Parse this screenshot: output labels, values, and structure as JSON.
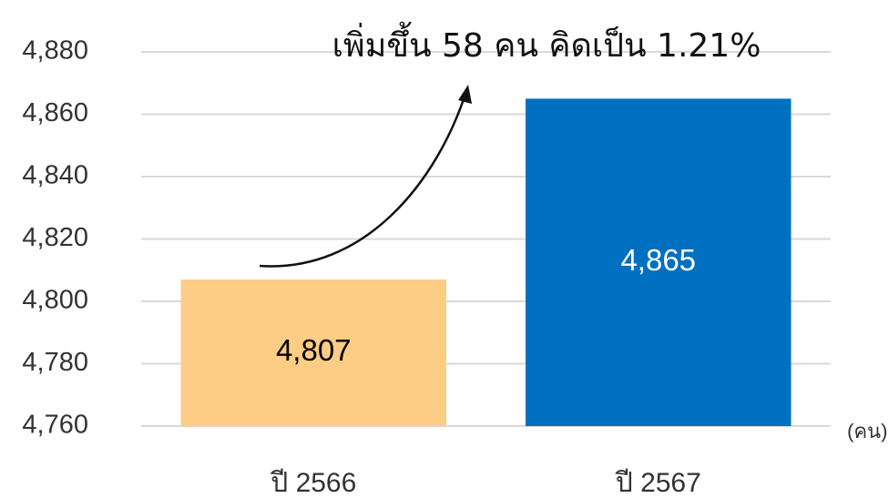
{
  "chart_data": {
    "type": "bar",
    "annotation": "เพิ่มขึ้น 58 คน คิดเป็น 1.21%",
    "unit_label": "(คน)",
    "categories": [
      "ปี 2566",
      "ปี 2567"
    ],
    "values": [
      4807,
      4865
    ],
    "value_labels": [
      "4,807",
      "4,865"
    ],
    "colors": [
      "#fdcd85",
      "#0070c0"
    ],
    "label_colors": [
      "#000000",
      "#ffffff"
    ],
    "ylim": [
      4760,
      4880
    ],
    "yticks": [
      {
        "value": 4760,
        "label": "4,760"
      },
      {
        "value": 4780,
        "label": "4,780"
      },
      {
        "value": 4800,
        "label": "4,800"
      },
      {
        "value": 4820,
        "label": "4,820"
      },
      {
        "value": 4840,
        "label": "4,840"
      },
      {
        "value": 4860,
        "label": "4,860"
      },
      {
        "value": 4880,
        "label": "4,880"
      }
    ],
    "grid": true
  }
}
